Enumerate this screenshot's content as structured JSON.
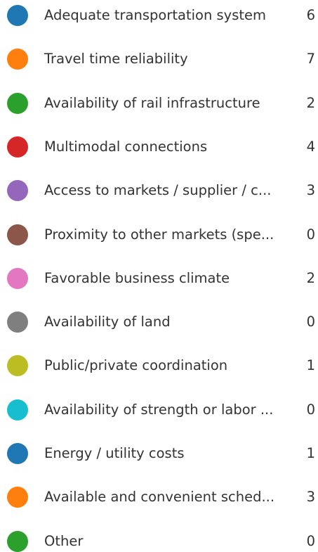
{
  "items": [
    {
      "label": "Adequate transportation system",
      "count": 6,
      "color": "#1f77b4"
    },
    {
      "label": "Travel time reliability",
      "count": 7,
      "color": "#ff7f0e"
    },
    {
      "label": "Availability of rail infrastructure",
      "count": 2,
      "color": "#2ca02c"
    },
    {
      "label": "Multimodal connections",
      "count": 4,
      "color": "#d62728"
    },
    {
      "label": "Access to markets / supplier / c...",
      "count": 3,
      "color": "#9467bd"
    },
    {
      "label": "Proximity to other markets (spe...",
      "count": 0,
      "color": "#8c564b"
    },
    {
      "label": "Favorable business climate",
      "count": 2,
      "color": "#e377c2"
    },
    {
      "label": "Availability of land",
      "count": 0,
      "color": "#7f7f7f"
    },
    {
      "label": "Public/private coordination",
      "count": 1,
      "color": "#bcbd22"
    },
    {
      "label": "Availability of strength or labor ...",
      "count": 0,
      "color": "#17becf"
    },
    {
      "label": "Energy / utility costs",
      "count": 1,
      "color": "#1f77b4"
    },
    {
      "label": "Available and convenient sched...",
      "count": 3,
      "color": "#ff7f0e"
    },
    {
      "label": "Other",
      "count": 0,
      "color": "#2ca02c"
    }
  ]
}
